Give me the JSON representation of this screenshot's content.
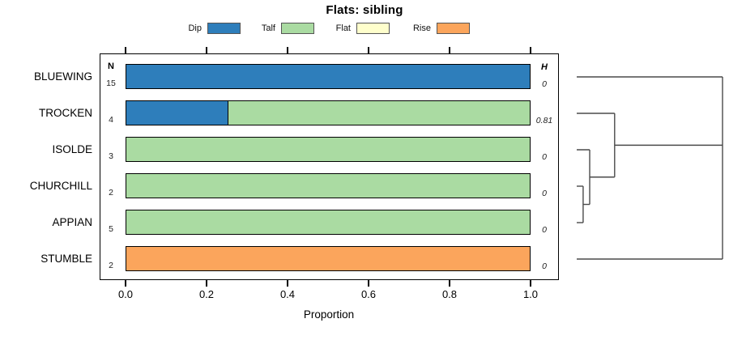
{
  "header": {
    "title": "Flats: sibling"
  },
  "legend": {
    "items": [
      {
        "label": "Dip",
        "color": "#2e7ebb"
      },
      {
        "label": "Talf",
        "color": "#aadba2"
      },
      {
        "label": "Flat",
        "color": "#ffffcc"
      },
      {
        "label": "Rise",
        "color": "#fba55c"
      }
    ]
  },
  "columns": {
    "n_header": "N",
    "h_header": "H"
  },
  "axis": {
    "xlabel": "Proportion",
    "tick_labels": [
      "0.0",
      "0.2",
      "0.4",
      "0.6",
      "0.8",
      "1.0"
    ],
    "tick_values": [
      0,
      0.2,
      0.4,
      0.6,
      0.8,
      1.0
    ]
  },
  "chart_data": {
    "type": "bar",
    "orientation": "horizontal",
    "stacked": true,
    "title": "Flats: sibling",
    "xlabel": "Proportion",
    "xlim": [
      0,
      1
    ],
    "grid": false,
    "legend_position": "top",
    "legend_labels": [
      "Dip",
      "Talf",
      "Flat",
      "Rise"
    ],
    "palette": {
      "Dip": "#2e7ebb",
      "Talf": "#aadba2",
      "Flat": "#ffffcc",
      "Rise": "#fba55c"
    },
    "categories": [
      "BLUEWING",
      "TROCKEN",
      "ISOLDE",
      "CHURCHILL",
      "APPIAN",
      "STUMBLE"
    ],
    "rows": [
      {
        "label": "BLUEWING",
        "n": "15",
        "h": "0",
        "segments": [
          {
            "name": "Dip",
            "value": 1.0
          }
        ]
      },
      {
        "label": "TROCKEN",
        "n": "4",
        "h": "0.81",
        "segments": [
          {
            "name": "Dip",
            "value": 0.25
          },
          {
            "name": "Talf",
            "value": 0.75
          }
        ]
      },
      {
        "label": "ISOLDE",
        "n": "3",
        "h": "0",
        "segments": [
          {
            "name": "Talf",
            "value": 1.0
          }
        ]
      },
      {
        "label": "CHURCHILL",
        "n": "2",
        "h": "0",
        "segments": [
          {
            "name": "Talf",
            "value": 1.0
          }
        ]
      },
      {
        "label": "APPIAN",
        "n": "5",
        "h": "0",
        "segments": [
          {
            "name": "Talf",
            "value": 1.0
          }
        ]
      },
      {
        "label": "STUMBLE",
        "n": "2",
        "h": "0",
        "segments": [
          {
            "name": "Rise",
            "value": 1.0
          }
        ]
      }
    ],
    "dendrogram": {
      "description": "height axis runs left(0)-to-right(1); y in row units",
      "merge_heights": [
        0.044,
        0.089,
        0.26,
        1.0
      ],
      "segments": [
        {
          "x1": 0,
          "y1": 0,
          "x2": 1,
          "y2": 0
        },
        {
          "x1": 0,
          "y1": 1,
          "x2": 0.26,
          "y2": 1
        },
        {
          "x1": 0,
          "y1": 2,
          "x2": 0.089,
          "y2": 2
        },
        {
          "x1": 0,
          "y1": 3,
          "x2": 0.044,
          "y2": 3
        },
        {
          "x1": 0,
          "y1": 4,
          "x2": 0.044,
          "y2": 4
        },
        {
          "x1": 0,
          "y1": 5,
          "x2": 1,
          "y2": 5
        },
        {
          "x1": 0.044,
          "y1": 3,
          "x2": 0.044,
          "y2": 4
        },
        {
          "x1": 0.044,
          "y1": 3.5,
          "x2": 0.089,
          "y2": 3.5
        },
        {
          "x1": 0.089,
          "y1": 2,
          "x2": 0.089,
          "y2": 3.5
        },
        {
          "x1": 0.089,
          "y1": 2.75,
          "x2": 0.26,
          "y2": 2.75
        },
        {
          "x1": 0.26,
          "y1": 1,
          "x2": 0.26,
          "y2": 2.75
        },
        {
          "x1": 0.26,
          "y1": 1.875,
          "x2": 1,
          "y2": 1.875
        },
        {
          "x1": 1,
          "y1": 0,
          "x2": 1,
          "y2": 5
        }
      ]
    }
  }
}
